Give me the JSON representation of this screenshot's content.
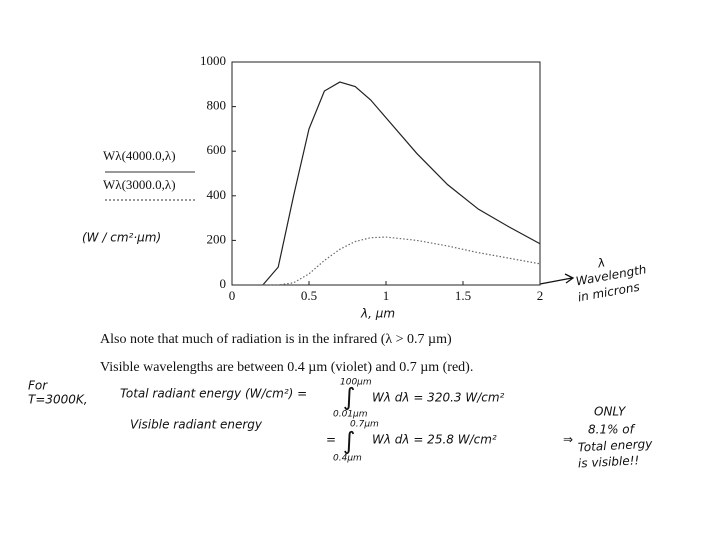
{
  "chart_data": {
    "type": "line",
    "x": [
      0.2,
      0.3,
      0.4,
      0.5,
      0.6,
      0.7,
      0.8,
      0.9,
      1.0,
      1.2,
      1.4,
      1.6,
      1.8,
      2.0
    ],
    "series": [
      {
        "name": "Wλ(4000.0,λ)",
        "color": "#222222",
        "dash": "solid",
        "values": [
          0,
          80,
          400,
          700,
          870,
          910,
          890,
          830,
          750,
          590,
          450,
          340,
          260,
          185
        ]
      },
      {
        "name": "Wλ(3000.0,λ)",
        "color": "#666666",
        "dash": "dotted",
        "values": [
          0,
          0,
          10,
          50,
          110,
          160,
          195,
          212,
          215,
          200,
          175,
          145,
          120,
          95
        ]
      }
    ],
    "xlim": [
      0,
      2
    ],
    "ylim": [
      0,
      1000
    ],
    "xticks": [
      0,
      0.5,
      1,
      1.5,
      2
    ],
    "yticks": [
      0,
      200,
      400,
      600,
      800,
      1000
    ],
    "x_label": "λ, µm",
    "y_unit": "(W / cm²·µm)",
    "notes": [
      "Also note that much of radiation is in the infrared (λ > 0.7 µm)",
      "Visible wavelengths are between 0.4 µm (violet) and 0.7 µm (red)."
    ],
    "annotations": [
      "λ",
      "Wavelength",
      "in microns",
      "For",
      "T=3000K,",
      "Total radiant energy (W/cm²) =",
      "100µm",
      "∫",
      "0.01µm",
      "Wλ dλ = 320.3 W/cm²",
      "Visible radiant energy",
      "0.7µm",
      "∫",
      "0.4µm",
      "Wλ dλ = 25.8 W/cm²",
      "⇒",
      "ONLY",
      "8.1% of",
      "Total energy",
      "is visible!!",
      "="
    ]
  }
}
